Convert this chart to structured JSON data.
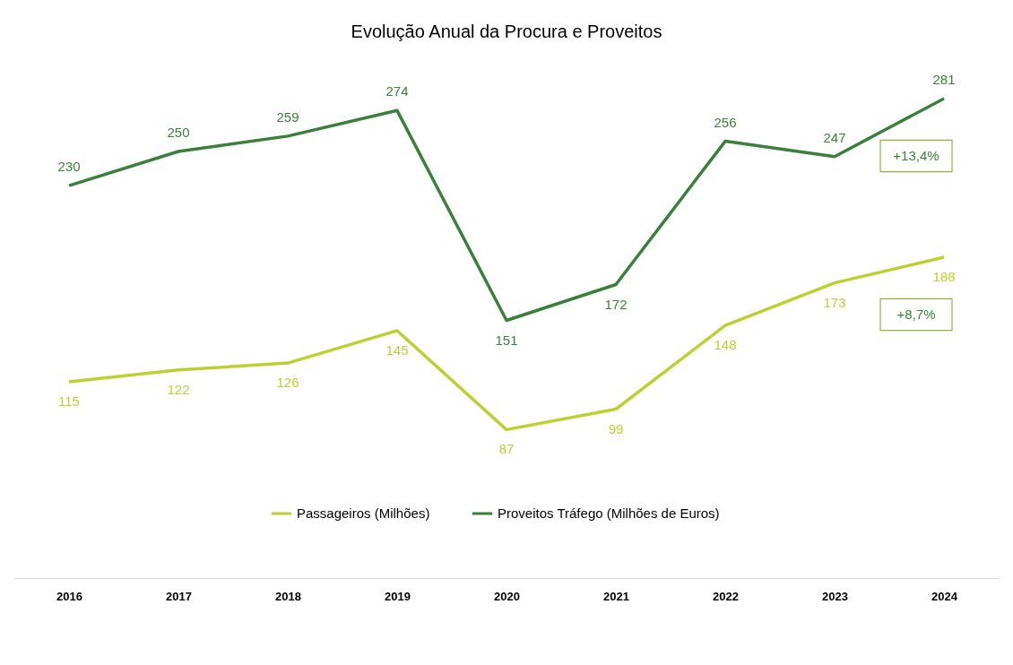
{
  "chart_data": {
    "type": "line",
    "title": "Evolução Anual da Procura e Proveitos",
    "categories": [
      "2016",
      "2017",
      "2018",
      "2019",
      "2020",
      "2021",
      "2022",
      "2023",
      "2024"
    ],
    "series": [
      {
        "name": "Passageiros (Milhões)",
        "color": "#bcd131",
        "values": [
          115,
          122,
          126,
          145,
          87,
          99,
          148,
          173,
          188
        ]
      },
      {
        "name": "Proveitos Tráfego (Milhões de Euros)",
        "color": "#3c7f3c",
        "values": [
          230,
          250,
          259,
          274,
          151,
          172,
          256,
          247,
          281
        ]
      }
    ],
    "annotations": [
      "+13,4%",
      "+8,7%"
    ],
    "data_labels": true,
    "legend": "bottom",
    "grid": false,
    "marker": "none",
    "line_style": "solid"
  }
}
